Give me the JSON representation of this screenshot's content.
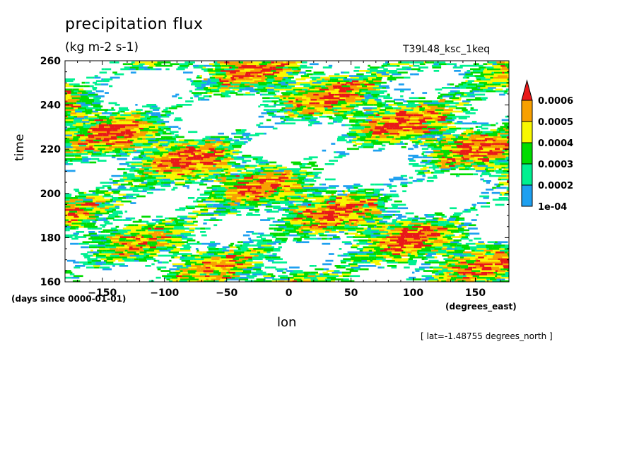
{
  "chart_data": {
    "type": "heatmap",
    "title": "precipitation flux",
    "subtitle": "(kg m-2 s-1)",
    "run_label": "T39L48_ksc_1keq",
    "xlabel": "lon",
    "ylabel": "time",
    "x_units": "(degrees_east)",
    "y_units": "(days since 0000-01-01)",
    "annotation": "[ lat=-1.48755 degrees_north ]",
    "xlim": [
      -180,
      177
    ],
    "ylim": [
      160,
      260
    ],
    "x_ticks": [
      -150,
      -100,
      -50,
      0,
      50,
      100,
      150
    ],
    "x_tick_labels": [
      "−150",
      "−100",
      "−50",
      "0",
      "50",
      "100",
      "150"
    ],
    "y_ticks": [
      160,
      180,
      200,
      220,
      240,
      260
    ],
    "y_tick_labels": [
      "160",
      "180",
      "200",
      "220",
      "240",
      "260"
    ],
    "colorbar": {
      "levels": [
        0.0001,
        0.0002,
        0.0003,
        0.0004,
        0.0005,
        0.0006
      ],
      "labels": [
        "1e-04",
        "0.0002",
        "0.0003",
        "0.0004",
        "0.0005",
        "0.0006"
      ],
      "colors": [
        "#1ea0f0",
        "#00f090",
        "#00dc00",
        "#f8f800",
        "#f8a000",
        "#e81818"
      ],
      "extend": "max"
    },
    "pattern": "dense tilted streaks of precipitation; roughly half of the field below 1e-04 (white)"
  }
}
